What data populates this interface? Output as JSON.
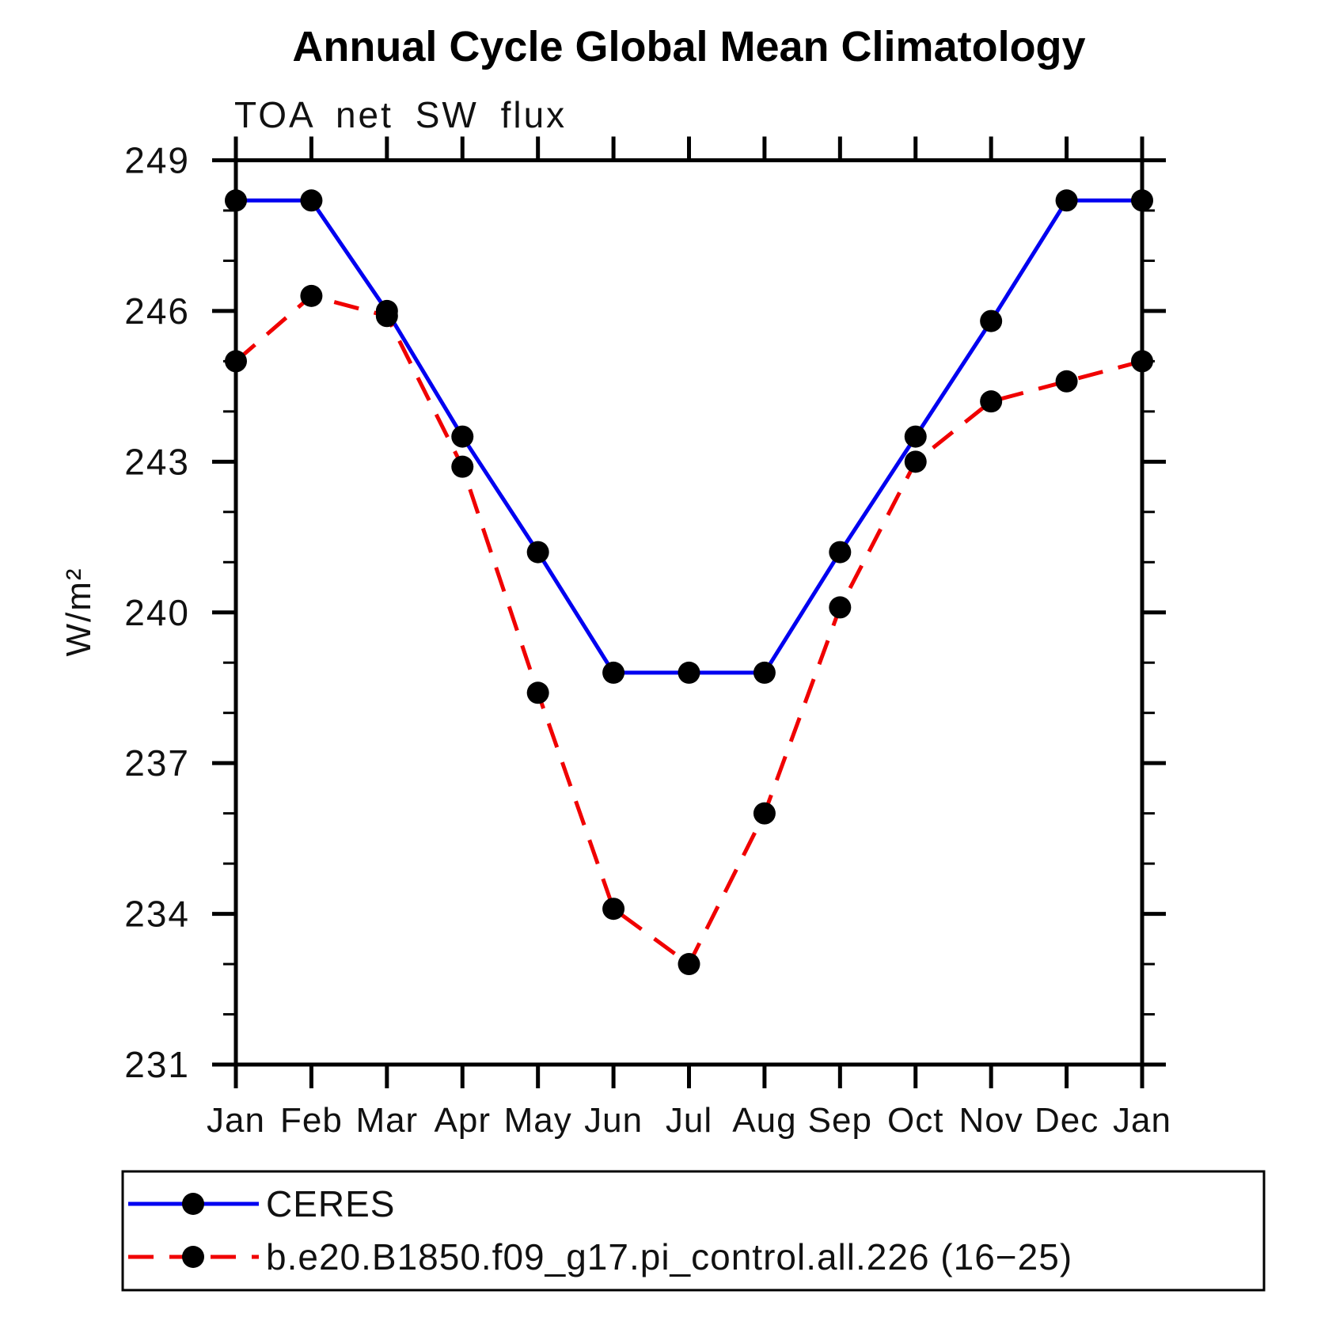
{
  "chart_data": {
    "type": "line",
    "title": "Annual Cycle Global Mean Climatology",
    "subtitle": "TOA net SW flux",
    "ylabel": "W/m²",
    "categories": [
      "Jan",
      "Feb",
      "Mar",
      "Apr",
      "May",
      "Jun",
      "Jul",
      "Aug",
      "Sep",
      "Oct",
      "Nov",
      "Dec",
      "Jan"
    ],
    "ylim": [
      231,
      249
    ],
    "y_major_tick_step": 3,
    "y_minor_tick_step": 1,
    "y_major_tick_labels": [
      "231",
      "234",
      "237",
      "240",
      "243",
      "246",
      "249"
    ],
    "grid": false,
    "tick_direction": "outward",
    "axis_color": "#000000",
    "legend_position": "bottom-left-box",
    "series": [
      {
        "name": "CERES",
        "line_style": "solid",
        "color": "#0000f0",
        "marker": "filled-circle",
        "marker_color": "#000000",
        "values": [
          248.2,
          248.2,
          246.0,
          243.5,
          241.2,
          238.8,
          238.8,
          238.8,
          241.2,
          243.5,
          245.8,
          248.2,
          248.2
        ]
      },
      {
        "name": "b.e20.B1850.f09_g17.pi_control.all.226 (16−25)",
        "line_style": "dashed",
        "color": "#f00000",
        "marker": "filled-circle",
        "marker_color": "#000000",
        "values": [
          245.0,
          246.3,
          245.9,
          242.9,
          238.4,
          234.1,
          233.0,
          236.0,
          240.1,
          243.0,
          244.2,
          244.6,
          245.0
        ]
      }
    ]
  }
}
